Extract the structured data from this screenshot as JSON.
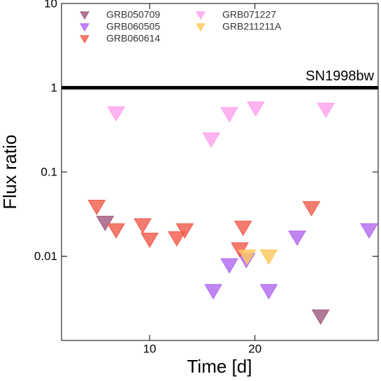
{
  "chart_data": {
    "type": "scatter",
    "marker": "triangle-down",
    "xlabel": "Time [d]",
    "ylabel": "Flux ratio",
    "xscale": "log",
    "yscale": "log",
    "xlim": [
      5.6,
      45
    ],
    "ylim": [
      0.001,
      10
    ],
    "xticks": [
      10,
      20
    ],
    "yticks": [
      0.01,
      0.1,
      1,
      10
    ],
    "reference_line": {
      "value": 1,
      "label": "SN1998bw",
      "color": "#000000"
    },
    "legend": "upper left",
    "series": [
      {
        "name": "GRB050709",
        "color": "#a0587e",
        "x": [
          7.46,
          30.8
        ],
        "values": [
          0.0246,
          0.0019
        ]
      },
      {
        "name": "GRB060505",
        "color": "#b266f0",
        "x": [
          15.2,
          16.9,
          18.9,
          21.9,
          26.4,
          42.4
        ],
        "values": [
          0.0038,
          0.0077,
          0.0089,
          0.0038,
          0.0164,
          0.02
        ]
      },
      {
        "name": "GRB060614",
        "color": "#f05a4a",
        "x": [
          7.06,
          8.02,
          9.55,
          10.0,
          11.96,
          12.6,
          18.5,
          18.1,
          29.0
        ],
        "values": [
          0.038,
          0.02,
          0.023,
          0.0155,
          0.0161,
          0.02,
          0.0215,
          0.0119,
          0.0367
        ]
      },
      {
        "name": "GRB071227",
        "color": "#ffa0ee",
        "x": [
          8.02,
          15.0,
          16.9,
          20.1,
          31.9
        ],
        "values": [
          0.49,
          0.24,
          0.48,
          0.56,
          0.54
        ]
      },
      {
        "name": "GRB211211A",
        "color": "#ffc85a",
        "x": [
          19.0,
          21.9
        ],
        "values": [
          0.0098,
          0.0098
        ]
      }
    ]
  }
}
